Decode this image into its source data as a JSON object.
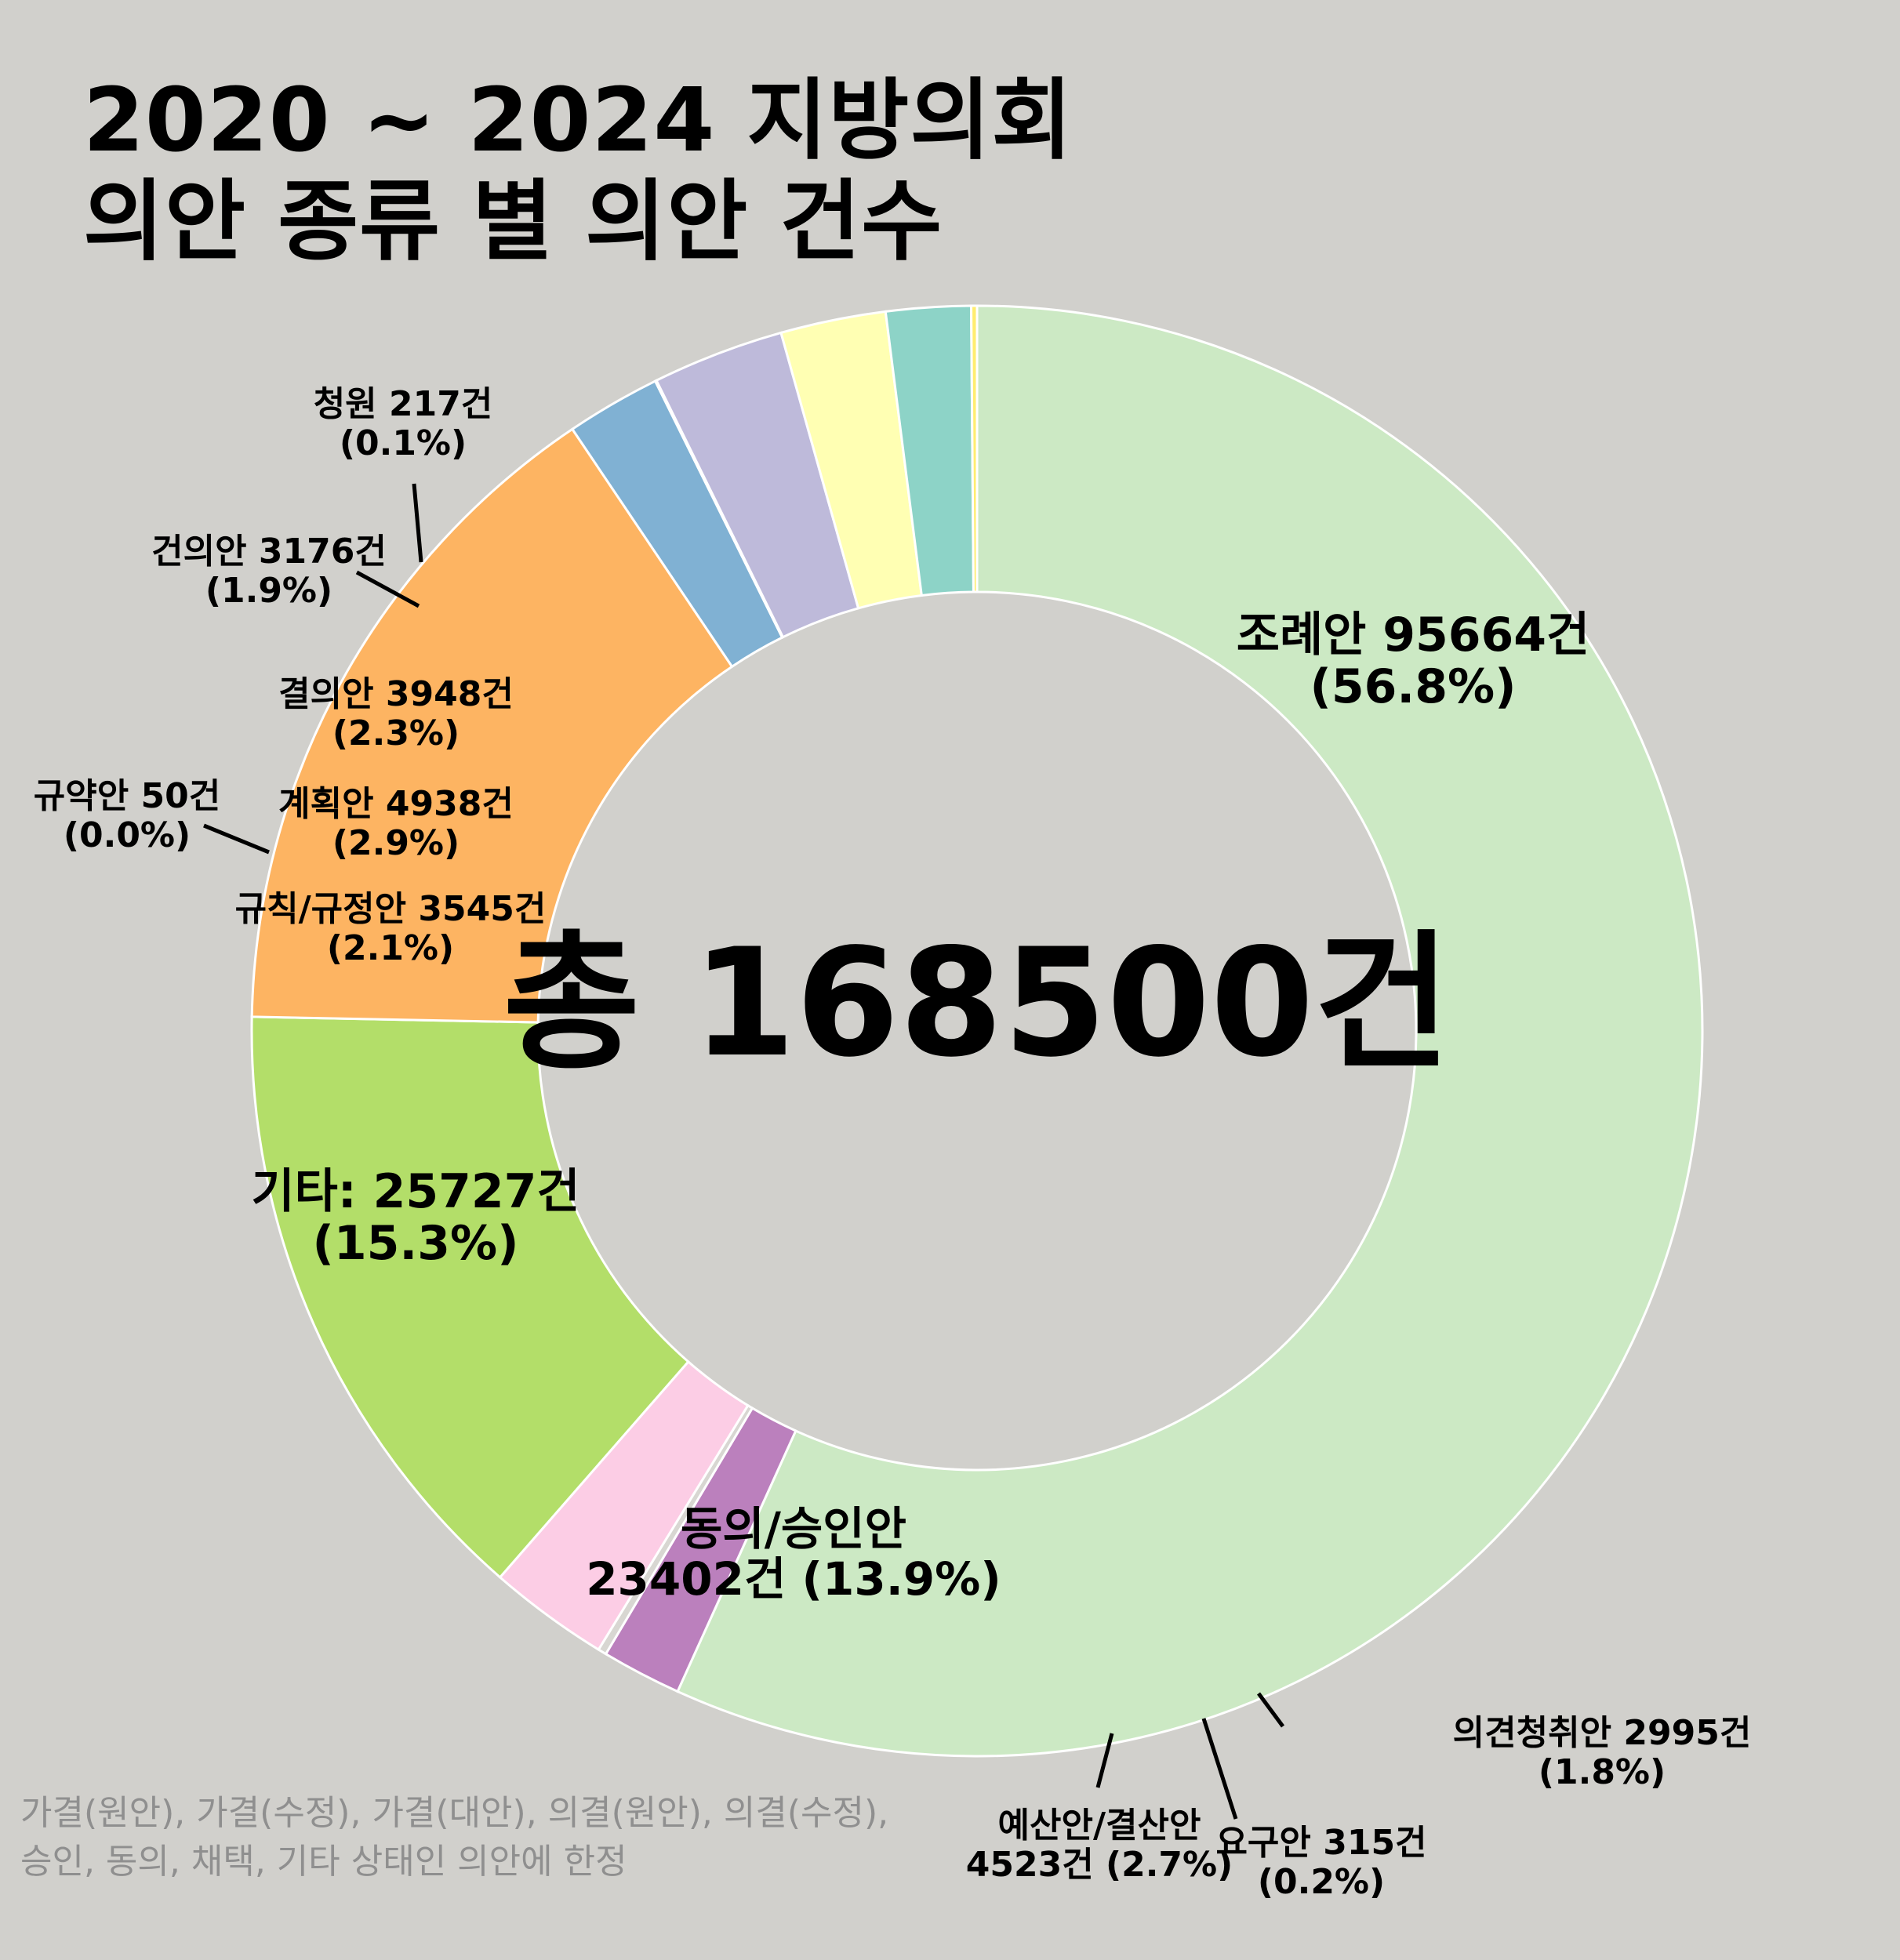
{
  "title": {
    "line1": "2020 ~ 2024 지방의회",
    "line2": "의안 종류 별 의안 건수"
  },
  "center_label": "총 168500건",
  "footnote": {
    "line1": "가결(원안), 가결(수정), 가결(대안), 의결(원안), 의결(수정),",
    "line2": "승인, 동의, 채택, 기타 상태인 의안에 한정"
  },
  "chart_data": {
    "type": "pie",
    "donut": true,
    "total": 168500,
    "start": "12 o'clock",
    "direction": "clockwise",
    "slices": [
      {
        "name": "조례안",
        "value": 95664,
        "percent": 56.8,
        "color": "#cce9c4",
        "label": [
          "조례안 95664건",
          "(56.8%)"
        ]
      },
      {
        "name": "의견청취안",
        "value": 2995,
        "percent": 1.8,
        "color": "#bb80bd",
        "label": [
          "의견청취안 2995건",
          "(1.8%)"
        ]
      },
      {
        "name": "요구안",
        "value": 315,
        "percent": 0.2,
        "color": "#d8d7d2",
        "label": [
          "요구안 315건",
          "(0.2%)"
        ]
      },
      {
        "name": "예산안/결산안",
        "value": 4523,
        "percent": 2.7,
        "color": "#fccde5",
        "label": [
          "예산안/결산안",
          "4523건 (2.7%)"
        ]
      },
      {
        "name": "동의/승인안",
        "value": 23402,
        "percent": 13.9,
        "color": "#b3de69",
        "label": [
          "동의/승인안",
          "23402건 (13.9%)"
        ]
      },
      {
        "name": "기타",
        "value": 25727,
        "percent": 15.3,
        "color": "#fdb462",
        "label": [
          "기타: 25727건",
          "(15.3%)"
        ]
      },
      {
        "name": "규칙/규정안",
        "value": 3545,
        "percent": 2.1,
        "color": "#80b1d3",
        "label": [
          "규칙/규정안 3545건",
          "(2.1%)"
        ]
      },
      {
        "name": "규약안",
        "value": 50,
        "percent": 0.0,
        "color": "#fb8072",
        "label": [
          "규약안 50건",
          "(0.0%)"
        ]
      },
      {
        "name": "계획안",
        "value": 4938,
        "percent": 2.9,
        "color": "#bebada",
        "label": [
          "계획안 4938건",
          "(2.9%)"
        ]
      },
      {
        "name": "결의안",
        "value": 3948,
        "percent": 2.3,
        "color": "#ffffb3",
        "label": [
          "결의안 3948건",
          "(2.3%)"
        ]
      },
      {
        "name": "건의안",
        "value": 3176,
        "percent": 1.9,
        "color": "#8dd3c7",
        "label": [
          "건의안 3176건",
          "(1.9%)"
        ]
      },
      {
        "name": "청원",
        "value": 217,
        "percent": 0.1,
        "color": "#ffed6f",
        "label": [
          "청원 217건",
          "(0.1%)"
        ]
      }
    ]
  }
}
